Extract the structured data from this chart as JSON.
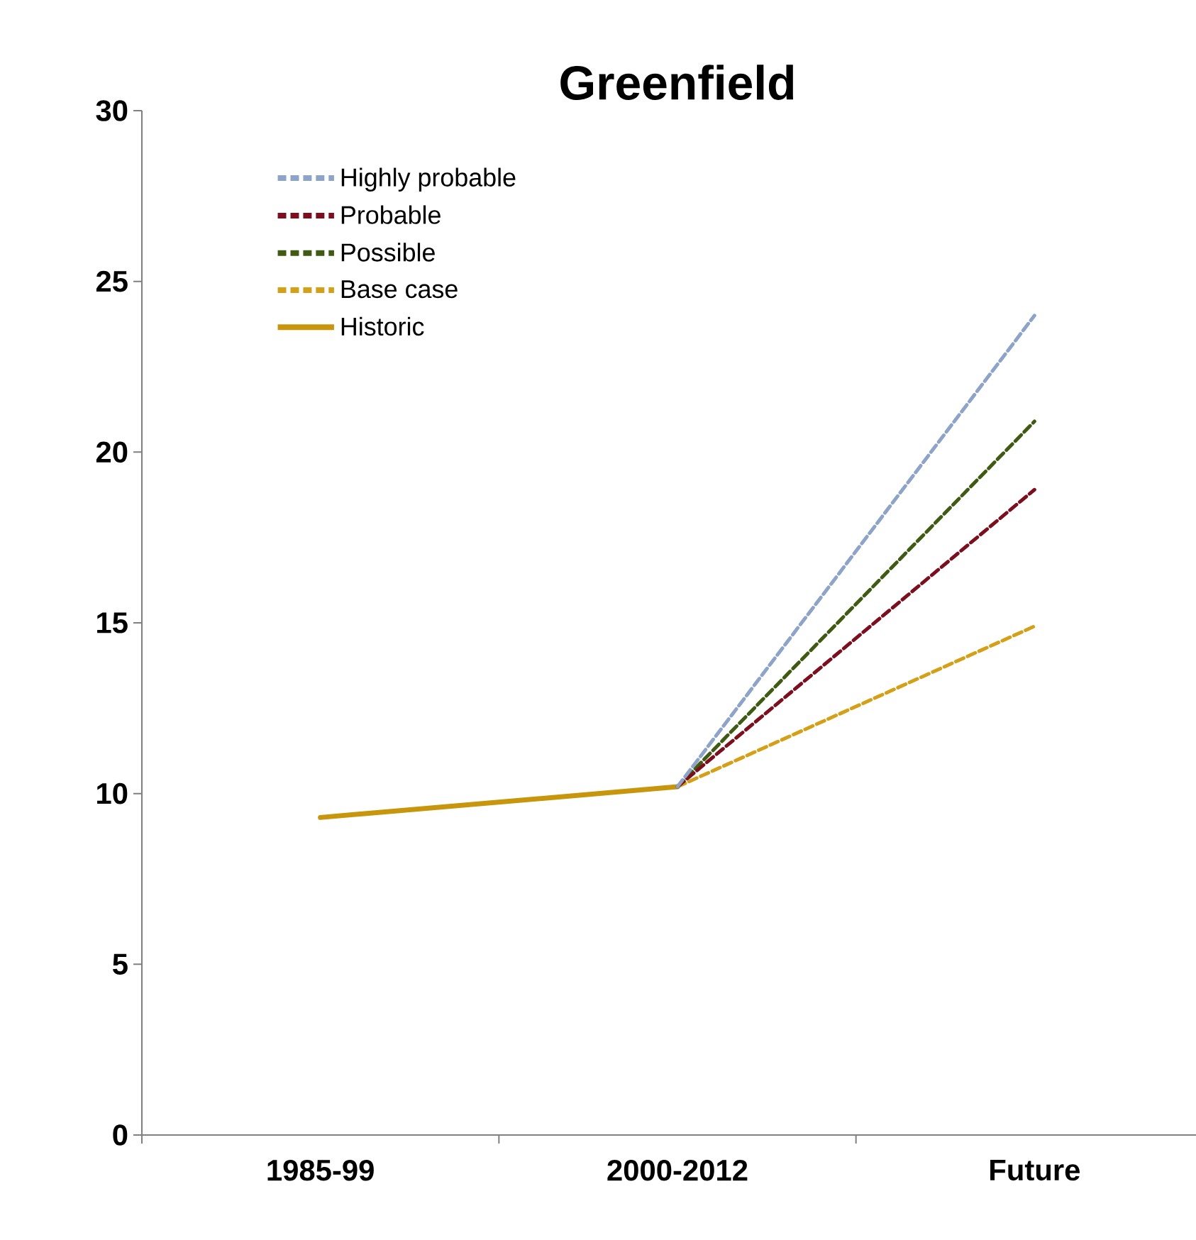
{
  "chart_data": {
    "type": "line",
    "title": "Greenfield",
    "categories": [
      "1985-99",
      "2000-2012",
      "Future"
    ],
    "series": [
      {
        "name": "Highly probable",
        "color": "#8ea3c8",
        "line_style": "dashed",
        "values": [
          null,
          10.2,
          24
        ]
      },
      {
        "name": "Probable",
        "color": "#7b0f1e",
        "line_style": "dashed",
        "values": [
          null,
          10.2,
          18.9
        ]
      },
      {
        "name": "Possible",
        "color": "#3f5a12",
        "line_style": "dashed",
        "values": [
          null,
          10.2,
          20.9
        ]
      },
      {
        "name": "Base case",
        "color": "#d4a017",
        "line_style": "dashed",
        "values": [
          null,
          10.2,
          14.9
        ]
      },
      {
        "name": "Historic",
        "color": "#c8960c",
        "line_style": "solid",
        "values": [
          9.3,
          10.2,
          null
        ]
      }
    ],
    "ylim": [
      0,
      30
    ],
    "yticks": [
      0,
      5,
      10,
      15,
      20,
      25,
      30
    ],
    "grid": false,
    "legend": "top left",
    "marker": "none"
  }
}
